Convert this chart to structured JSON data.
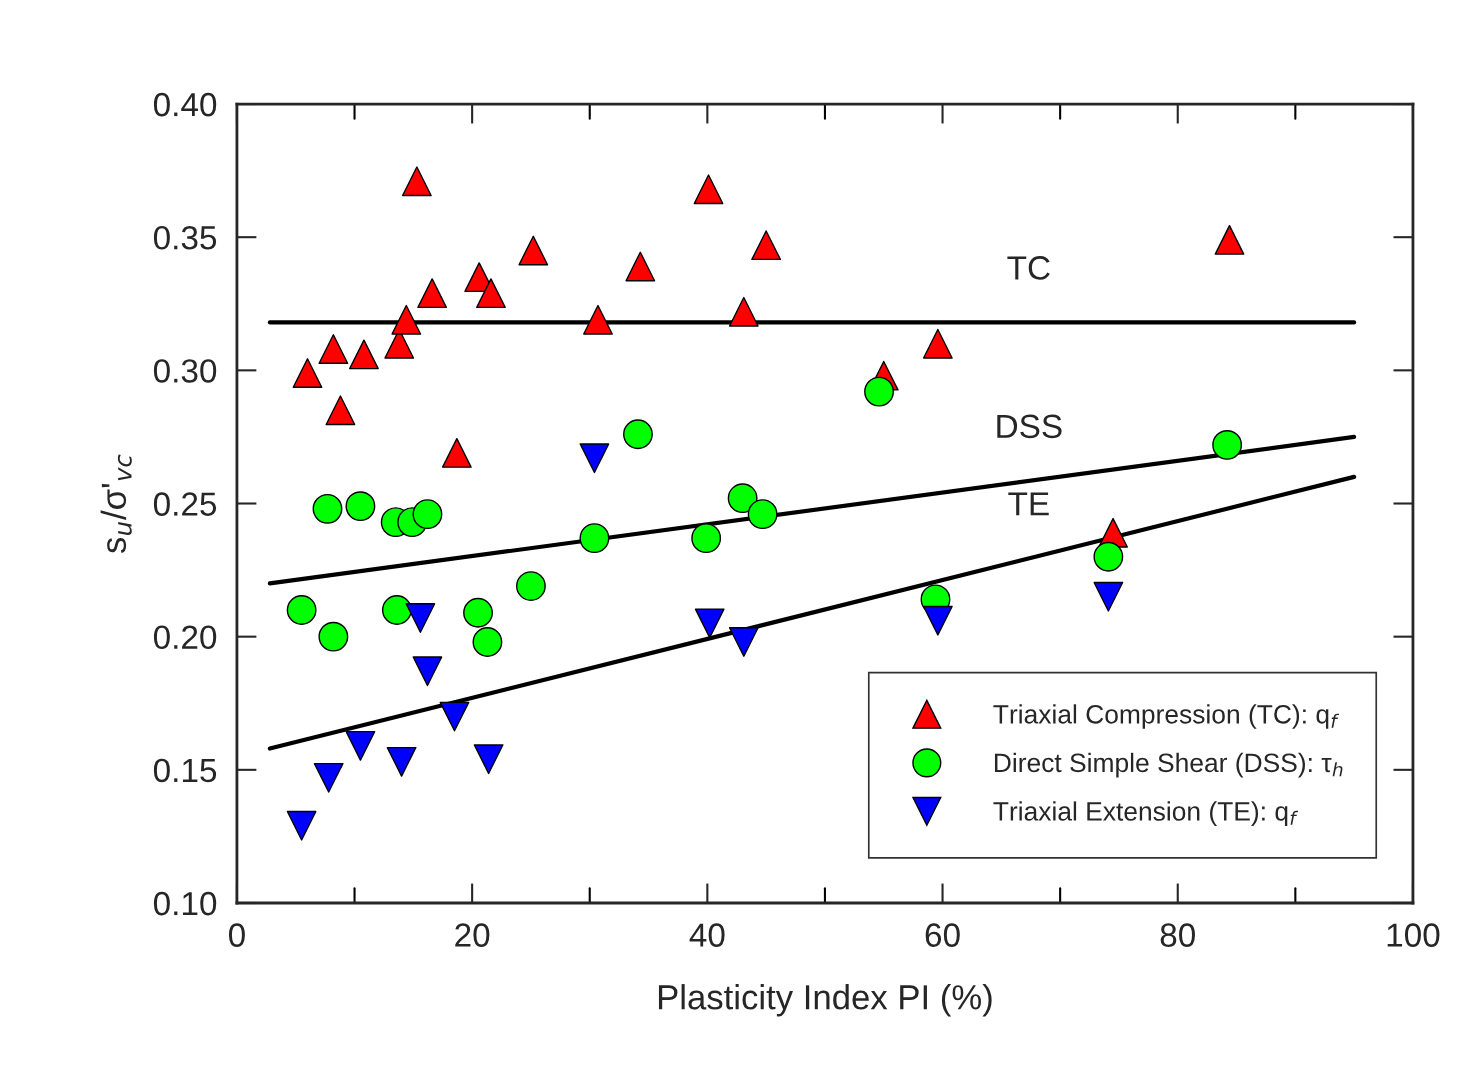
{
  "chart_data": {
    "type": "scatter",
    "xlabel": "Plasticity Index PI (%)",
    "ylabel": "s$_{u}$/σ'$_{vc}$",
    "xlim": [
      0,
      100
    ],
    "ylim": [
      0.1,
      0.4
    ],
    "xticks": [
      0,
      {
        "value": 10,
        "label": null
      },
      20,
      {
        "value": 30,
        "label": null
      },
      40,
      {
        "value": 50,
        "label": null
      },
      60,
      {
        "value": 70,
        "label": null
      },
      80,
      {
        "value": 90,
        "label": null
      },
      100
    ],
    "yticks": [
      {
        "value": 0.1,
        "label": "0.10"
      },
      {
        "value": 0.15,
        "label": "0.15"
      },
      {
        "value": 0.2,
        "label": "0.20"
      },
      {
        "value": 0.25,
        "label": "0.25"
      },
      {
        "value": 0.3,
        "label": "0.30"
      },
      {
        "value": 0.35,
        "label": "0.35"
      },
      {
        "value": 0.4,
        "label": "0.40"
      }
    ],
    "grid": false,
    "legend": "bottom right",
    "series": [
      {
        "name": "Triaxial Compression (TC): q$_{f}$",
        "color": "#ff0000",
        "marker": "triangle",
        "x": [
          6.0,
          8.2,
          8.8,
          10.8,
          13.8,
          14.4,
          15.3,
          16.6,
          18.7,
          20.6,
          21.6,
          25.2,
          30.7,
          34.3,
          40.1,
          43.1,
          45.0,
          55.0,
          59.6,
          74.5,
          84.4
        ],
        "values": [
          0.299,
          0.308,
          0.285,
          0.306,
          0.31,
          0.319,
          0.371,
          0.329,
          0.269,
          0.335,
          0.329,
          0.345,
          0.319,
          0.339,
          0.368,
          0.322,
          0.347,
          0.298,
          0.31,
          0.239,
          0.349
        ]
      },
      {
        "name": "Direct Simple Shear (DSS): τ$_{h}$",
        "color": "#00ff00",
        "marker": "circle",
        "x": [
          5.5,
          8.2,
          7.7,
          10.5,
          13.5,
          14.9,
          16.2,
          13.6,
          20.5,
          21.3,
          25.0,
          30.4,
          34.1,
          39.9,
          43.0,
          44.7,
          54.6,
          59.4,
          74.1,
          84.2
        ],
        "values": [
          0.21,
          0.2,
          0.248,
          0.249,
          0.243,
          0.243,
          0.246,
          0.21,
          0.209,
          0.198,
          0.219,
          0.237,
          0.276,
          0.237,
          0.252,
          0.246,
          0.292,
          0.214,
          0.23,
          0.272
        ]
      },
      {
        "name": "Triaxial Extension (TE): q$_{f}$",
        "color": "#0000ff",
        "marker": "triangle_down",
        "x": [
          5.5,
          7.8,
          10.5,
          14.0,
          15.6,
          16.2,
          18.5,
          21.4,
          30.4,
          40.2,
          43.1,
          59.6,
          74.1
        ],
        "values": [
          0.129,
          0.147,
          0.159,
          0.153,
          0.207,
          0.187,
          0.17,
          0.154,
          0.267,
          0.205,
          0.198,
          0.206,
          0.215
        ]
      },
      {
        "type": "line",
        "color": "#000000",
        "x": [
          2.8,
          95
        ],
        "values": [
          0.318,
          0.318
        ]
      },
      {
        "type": "line",
        "color": "#000000",
        "x": [
          2.8,
          95
        ],
        "values": [
          0.22,
          0.275
        ]
      },
      {
        "type": "line",
        "color": "#000000",
        "x": [
          2.8,
          95
        ],
        "values": [
          0.158,
          0.26
        ]
      }
    ],
    "annotations": [
      "TC",
      "DSS",
      "TE"
    ]
  }
}
